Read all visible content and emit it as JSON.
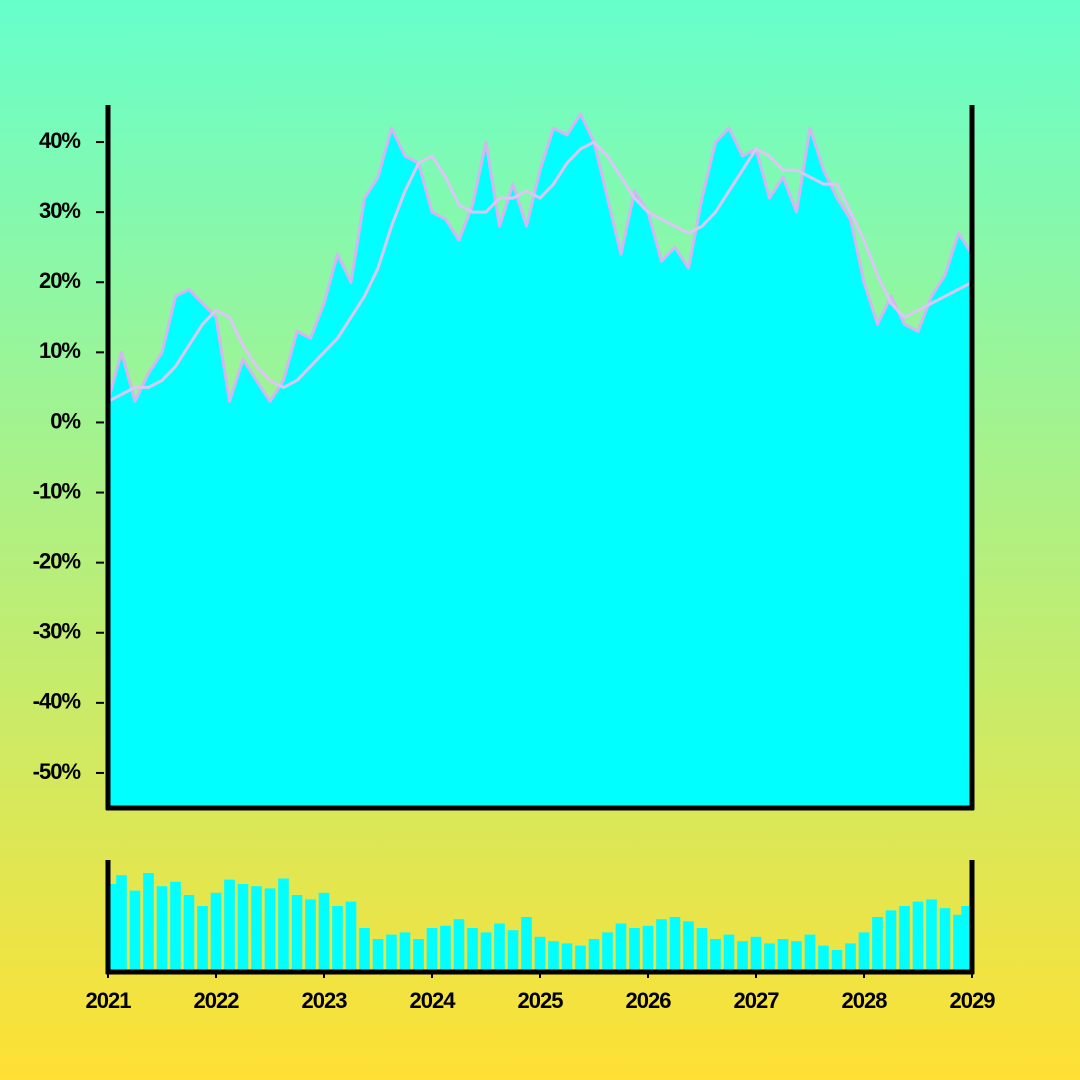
{
  "chart_data": [
    {
      "type": "area",
      "x": [
        2021,
        2021.125,
        2021.25,
        2021.375,
        2021.5,
        2021.625,
        2021.75,
        2021.875,
        2022,
        2022.125,
        2022.25,
        2022.375,
        2022.5,
        2022.625,
        2022.75,
        2022.875,
        2023,
        2023.125,
        2023.25,
        2023.375,
        2023.5,
        2023.625,
        2023.75,
        2023.875,
        2024,
        2024.125,
        2024.25,
        2024.375,
        2024.5,
        2024.625,
        2024.75,
        2024.875,
        2025,
        2025.125,
        2025.25,
        2025.375,
        2025.5,
        2025.625,
        2025.75,
        2025.875,
        2026,
        2026.125,
        2026.25,
        2026.375,
        2026.5,
        2026.625,
        2026.75,
        2026.875,
        2027,
        2027.125,
        2027.25,
        2027.375,
        2027.5,
        2027.625,
        2027.75,
        2027.875,
        2028,
        2028.125,
        2028.25,
        2028.375,
        2028.5,
        2028.625,
        2028.75,
        2028.875,
        2029
      ],
      "series": [
        {
          "kind": "area",
          "color": "#00ffff",
          "line_color": "#d3b6f2",
          "values": [
            3,
            10,
            3,
            7,
            10,
            18,
            19,
            17,
            15,
            3,
            9,
            6,
            3,
            6,
            13,
            12,
            17,
            24,
            20,
            32,
            35,
            42,
            38,
            37,
            30,
            29,
            26,
            31,
            40,
            28,
            34,
            28,
            36,
            42,
            41,
            44,
            40,
            32,
            24,
            33,
            30,
            23,
            25,
            22,
            32,
            40,
            42,
            38,
            39,
            32,
            35,
            30,
            42,
            36,
            32,
            29,
            20,
            14,
            18,
            14,
            13,
            18,
            21,
            27,
            24
          ]
        },
        {
          "kind": "line",
          "color": "#dcc6f6",
          "values": [
            3,
            4,
            5,
            5,
            6,
            8,
            11,
            14,
            16,
            15,
            11,
            8,
            6,
            5,
            6,
            8,
            10,
            12,
            15,
            18,
            22,
            28,
            33,
            37,
            38,
            35,
            31,
            30,
            30,
            32,
            32,
            33,
            32,
            34,
            37,
            39,
            40,
            38,
            35,
            32,
            30,
            29,
            28,
            27,
            28,
            30,
            33,
            36,
            39,
            38,
            36,
            36,
            35,
            34,
            34,
            30,
            26,
            21,
            17,
            15,
            16,
            17,
            18,
            19,
            20
          ]
        }
      ],
      "ylim": [
        -55,
        45
      ],
      "yticks": [
        {
          "value": -50,
          "label": "-50%"
        },
        {
          "value": -40,
          "label": "-40%"
        },
        {
          "value": -30,
          "label": "-30%"
        },
        {
          "value": -20,
          "label": "-20%"
        },
        {
          "value": -10,
          "label": "-10%"
        },
        {
          "value": 0,
          "label": "0%"
        },
        {
          "value": 10,
          "label": "10%"
        },
        {
          "value": 20,
          "label": "20%"
        },
        {
          "value": 30,
          "label": "30%"
        },
        {
          "value": 40,
          "label": "40%"
        }
      ],
      "xlim": [
        2021,
        2029
      ]
    },
    {
      "type": "bar",
      "x": [
        2021,
        2021.125,
        2021.25,
        2021.375,
        2021.5,
        2021.625,
        2021.75,
        2021.875,
        2022,
        2022.125,
        2022.25,
        2022.375,
        2022.5,
        2022.625,
        2022.75,
        2022.875,
        2023,
        2023.125,
        2023.25,
        2023.375,
        2023.5,
        2023.625,
        2023.75,
        2023.875,
        2024,
        2024.125,
        2024.25,
        2024.375,
        2024.5,
        2024.625,
        2024.75,
        2024.875,
        2025,
        2025.125,
        2025.25,
        2025.375,
        2025.5,
        2025.625,
        2025.75,
        2025.875,
        2026,
        2026.125,
        2026.25,
        2026.375,
        2026.5,
        2026.625,
        2026.75,
        2026.875,
        2027,
        2027.125,
        2027.25,
        2027.375,
        2027.5,
        2027.625,
        2027.75,
        2027.875,
        2028,
        2028.125,
        2028.25,
        2028.375,
        2028.5,
        2028.625,
        2028.75,
        2028.875,
        2029
      ],
      "values": [
        80,
        88,
        74,
        90,
        78,
        82,
        70,
        60,
        72,
        84,
        80,
        78,
        76,
        85,
        70,
        66,
        72,
        60,
        64,
        40,
        30,
        34,
        36,
        30,
        40,
        42,
        48,
        40,
        36,
        44,
        38,
        50,
        32,
        28,
        26,
        24,
        30,
        36,
        44,
        40,
        42,
        48,
        50,
        46,
        40,
        30,
        34,
        28,
        32,
        26,
        30,
        28,
        34,
        24,
        20,
        26,
        36,
        50,
        56,
        60,
        64,
        66,
        58,
        52,
        60
      ],
      "color": "#00ffff",
      "ylim": [
        0,
        100
      ],
      "xlim": [
        2021,
        2029
      ],
      "xticks": [
        2021,
        2022,
        2023,
        2024,
        2025,
        2026,
        2027,
        2028,
        2029
      ]
    }
  ]
}
